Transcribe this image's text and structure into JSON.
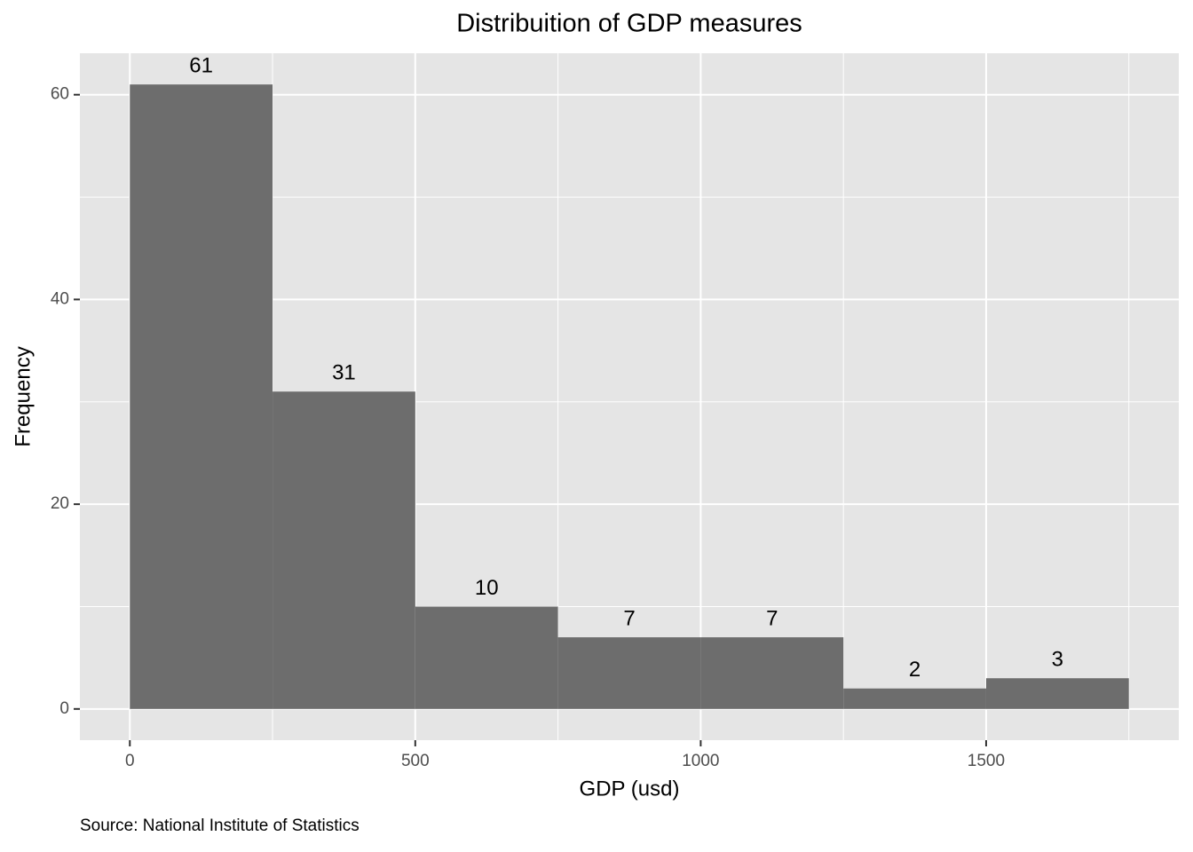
{
  "chart_data": {
    "type": "histogram",
    "title": "Distribuition of GDP measures",
    "x_label": "GDP (usd)",
    "y_label": "Frequency",
    "caption": "Source: National Institute of Statistics",
    "bins": [
      0,
      250,
      500,
      750,
      1000,
      1250,
      1500,
      1750
    ],
    "counts": [
      61,
      31,
      10,
      7,
      7,
      2,
      3
    ],
    "color": "#6d6d6d",
    "xlim": [
      -87.5,
      1837.5
    ],
    "xticks": [
      0,
      500,
      1000,
      1500
    ],
    "x_minor_grid": [
      250,
      750,
      1250,
      1750
    ],
    "ylim": [
      -3.05,
      64.05
    ],
    "yticks": [
      0,
      20,
      40,
      60
    ],
    "y_minor_grid": [
      10,
      30,
      50
    ],
    "grid": true
  }
}
